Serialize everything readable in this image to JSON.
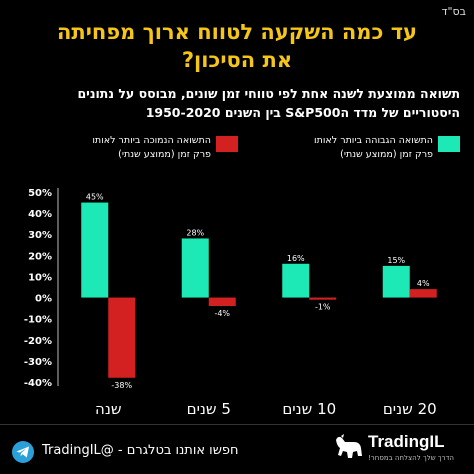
{
  "header": {
    "corner_mark": "בס\"ד",
    "title_line1": "עד כמה השקעה לטווח ארוך מפחיתה",
    "title_line2": "את הסיכון?",
    "subtitle_line1": "תשואה ממוצעת לשנה אחת לפי טווחי זמן שונים, מבוסס על נתונים",
    "subtitle_line2": "היסטוריים של מדד הS&P500 בין השנים 1950-2020"
  },
  "colors": {
    "high": "#1de9b6",
    "low": "#d32020",
    "title": "#f5c518"
  },
  "chart_data": {
    "type": "bar",
    "categories": [
      "שנה",
      "5 שנים",
      "10 שנים",
      "20 שנים"
    ],
    "series": [
      {
        "name": "התשואה הגבוהה ביותר לאותו פרק זמן (ממוצע שנתי)",
        "values": [
          45,
          28,
          16,
          15
        ],
        "labels": [
          "45%",
          "28%",
          "16%",
          "15%"
        ]
      },
      {
        "name": "התשואה הנמוכה ביותר לאותו פרק זמן (ממוצע שנתי)",
        "values": [
          -38,
          -4,
          -1,
          4
        ],
        "labels": [
          "-38%",
          "-4%",
          "-1%",
          "4%"
        ]
      }
    ],
    "ylim": [
      -40,
      50
    ],
    "yticks": [
      50,
      40,
      30,
      20,
      10,
      0,
      -10,
      -20,
      -30,
      -40
    ],
    "ytick_labels": [
      "50%",
      "40%",
      "30%",
      "20%",
      "10%",
      "0%",
      "-10%",
      "-20%",
      "-30%",
      "-40%"
    ],
    "legend_position": "top",
    "grid": false
  },
  "legend": {
    "high_line1": "התשואה הגבוהה ביותר לאותו",
    "high_line2": "פרק זמן (ממוצע שנתי)",
    "low_line1": "התשואה הנמוכה ביותר לאותו",
    "low_line2": "פרק זמן (ממוצע שנתי)"
  },
  "footer": {
    "telegram_text": "חפשו אותנו בטלגרם - @TradingIL",
    "brand_name": "TradingIL",
    "brand_tagline": "הדרך שלך להצלחה במסחר!",
    "telegram_icon": "telegram-icon",
    "brand_icon": "bull-icon"
  }
}
